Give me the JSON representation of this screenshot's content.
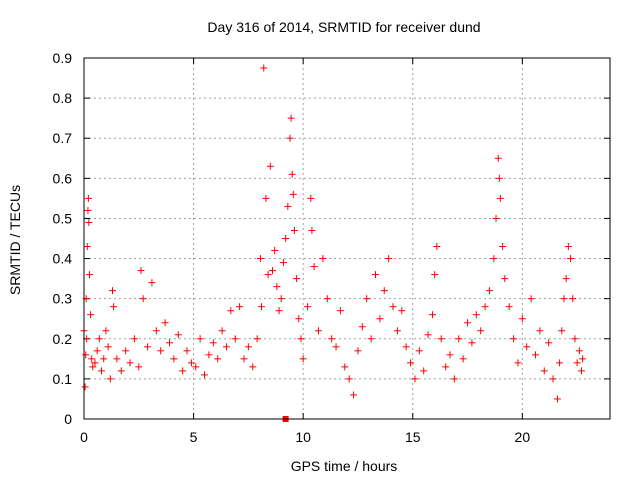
{
  "chart_data": {
    "type": "scatter",
    "title": "Day 316 of 2014, SRMTID for receiver dund",
    "xlabel": "GPS time / hours",
    "ylabel": "SRMTID / TECUs",
    "xlim": [
      0,
      24
    ],
    "ylim": [
      0,
      0.9
    ],
    "x_ticks": [
      "0",
      "5",
      "10",
      "15",
      "20"
    ],
    "y_ticks": [
      "0",
      "0.1",
      "0.2",
      "0.3",
      "0.4",
      "0.5",
      "0.6",
      "0.7",
      "0.8",
      "0.9"
    ],
    "grid": true,
    "marker": "+",
    "color": "#ff0000",
    "series": [
      {
        "name": "SRMTID",
        "points": [
          [
            0.0,
            0.22
          ],
          [
            0.05,
            0.08
          ],
          [
            0.08,
            0.16
          ],
          [
            0.1,
            0.3
          ],
          [
            0.12,
            0.2
          ],
          [
            0.15,
            0.43
          ],
          [
            0.18,
            0.52
          ],
          [
            0.2,
            0.55
          ],
          [
            0.22,
            0.49
          ],
          [
            0.25,
            0.36
          ],
          [
            0.3,
            0.26
          ],
          [
            0.35,
            0.15
          ],
          [
            0.4,
            0.13
          ],
          [
            0.5,
            0.14
          ],
          [
            0.6,
            0.17
          ],
          [
            0.7,
            0.2
          ],
          [
            0.8,
            0.12
          ],
          [
            0.9,
            0.15
          ],
          [
            1.0,
            0.22
          ],
          [
            1.1,
            0.18
          ],
          [
            1.2,
            0.1
          ],
          [
            1.3,
            0.32
          ],
          [
            1.35,
            0.28
          ],
          [
            1.5,
            0.15
          ],
          [
            1.7,
            0.12
          ],
          [
            1.9,
            0.17
          ],
          [
            2.1,
            0.14
          ],
          [
            2.3,
            0.2
          ],
          [
            2.5,
            0.13
          ],
          [
            2.6,
            0.37
          ],
          [
            2.7,
            0.3
          ],
          [
            2.9,
            0.18
          ],
          [
            3.1,
            0.34
          ],
          [
            3.3,
            0.22
          ],
          [
            3.5,
            0.17
          ],
          [
            3.7,
            0.24
          ],
          [
            3.9,
            0.19
          ],
          [
            4.1,
            0.15
          ],
          [
            4.3,
            0.21
          ],
          [
            4.5,
            0.12
          ],
          [
            4.7,
            0.17
          ],
          [
            4.9,
            0.14
          ],
          [
            5.1,
            0.13
          ],
          [
            5.3,
            0.2
          ],
          [
            5.5,
            0.11
          ],
          [
            5.7,
            0.16
          ],
          [
            5.9,
            0.19
          ],
          [
            6.1,
            0.15
          ],
          [
            6.3,
            0.22
          ],
          [
            6.5,
            0.18
          ],
          [
            6.7,
            0.27
          ],
          [
            6.9,
            0.2
          ],
          [
            7.1,
            0.28
          ],
          [
            7.3,
            0.15
          ],
          [
            7.5,
            0.18
          ],
          [
            7.7,
            0.13
          ],
          [
            7.9,
            0.2
          ],
          [
            8.05,
            0.4
          ],
          [
            8.1,
            0.28
          ],
          [
            8.2,
            0.875
          ],
          [
            8.3,
            0.55
          ],
          [
            8.4,
            0.36
          ],
          [
            8.5,
            0.63
          ],
          [
            8.6,
            0.37
          ],
          [
            8.7,
            0.42
          ],
          [
            8.8,
            0.33
          ],
          [
            8.9,
            0.27
          ],
          [
            9.0,
            0.3
          ],
          [
            9.1,
            0.39
          ],
          [
            9.2,
            0.45
          ],
          [
            9.3,
            0.53
          ],
          [
            9.4,
            0.7
          ],
          [
            9.45,
            0.75
          ],
          [
            9.5,
            0.61
          ],
          [
            9.55,
            0.56
          ],
          [
            9.6,
            0.47
          ],
          [
            9.7,
            0.35
          ],
          [
            9.8,
            0.25
          ],
          [
            9.9,
            0.2
          ],
          [
            10.0,
            0.15
          ],
          [
            10.2,
            0.28
          ],
          [
            10.35,
            0.55
          ],
          [
            10.4,
            0.47
          ],
          [
            10.5,
            0.38
          ],
          [
            10.7,
            0.22
          ],
          [
            10.9,
            0.4
          ],
          [
            11.1,
            0.3
          ],
          [
            11.3,
            0.2
          ],
          [
            11.5,
            0.18
          ],
          [
            11.7,
            0.27
          ],
          [
            11.9,
            0.13
          ],
          [
            12.1,
            0.1
          ],
          [
            12.3,
            0.06
          ],
          [
            12.5,
            0.17
          ],
          [
            12.7,
            0.23
          ],
          [
            12.9,
            0.3
          ],
          [
            13.1,
            0.2
          ],
          [
            13.3,
            0.36
          ],
          [
            13.5,
            0.25
          ],
          [
            13.7,
            0.32
          ],
          [
            13.9,
            0.4
          ],
          [
            14.1,
            0.28
          ],
          [
            14.3,
            0.22
          ],
          [
            14.5,
            0.27
          ],
          [
            14.7,
            0.18
          ],
          [
            14.9,
            0.14
          ],
          [
            15.1,
            0.1
          ],
          [
            15.3,
            0.17
          ],
          [
            15.5,
            0.12
          ],
          [
            15.7,
            0.21
          ],
          [
            15.9,
            0.26
          ],
          [
            16.0,
            0.36
          ],
          [
            16.1,
            0.43
          ],
          [
            16.3,
            0.2
          ],
          [
            16.5,
            0.13
          ],
          [
            16.7,
            0.16
          ],
          [
            16.9,
            0.1
          ],
          [
            17.1,
            0.2
          ],
          [
            17.3,
            0.15
          ],
          [
            17.5,
            0.24
          ],
          [
            17.7,
            0.19
          ],
          [
            17.9,
            0.26
          ],
          [
            18.1,
            0.22
          ],
          [
            18.3,
            0.28
          ],
          [
            18.5,
            0.32
          ],
          [
            18.7,
            0.4
          ],
          [
            18.8,
            0.5
          ],
          [
            18.9,
            0.65
          ],
          [
            18.95,
            0.6
          ],
          [
            19.0,
            0.55
          ],
          [
            19.1,
            0.43
          ],
          [
            19.2,
            0.35
          ],
          [
            19.4,
            0.28
          ],
          [
            19.6,
            0.2
          ],
          [
            19.8,
            0.14
          ],
          [
            20.0,
            0.25
          ],
          [
            20.2,
            0.18
          ],
          [
            20.4,
            0.3
          ],
          [
            20.6,
            0.16
          ],
          [
            20.8,
            0.22
          ],
          [
            21.0,
            0.12
          ],
          [
            21.2,
            0.19
          ],
          [
            21.4,
            0.1
          ],
          [
            21.6,
            0.05
          ],
          [
            21.7,
            0.14
          ],
          [
            21.8,
            0.22
          ],
          [
            21.9,
            0.3
          ],
          [
            22.0,
            0.35
          ],
          [
            22.1,
            0.43
          ],
          [
            22.2,
            0.4
          ],
          [
            22.3,
            0.3
          ],
          [
            22.4,
            0.2
          ],
          [
            22.5,
            0.14
          ],
          [
            22.6,
            0.17
          ],
          [
            22.7,
            0.12
          ],
          [
            22.75,
            0.15
          ]
        ]
      }
    ],
    "annotations": [
      {
        "label": "filled-square-marker",
        "x": 9.2,
        "y": 0.0
      }
    ]
  }
}
